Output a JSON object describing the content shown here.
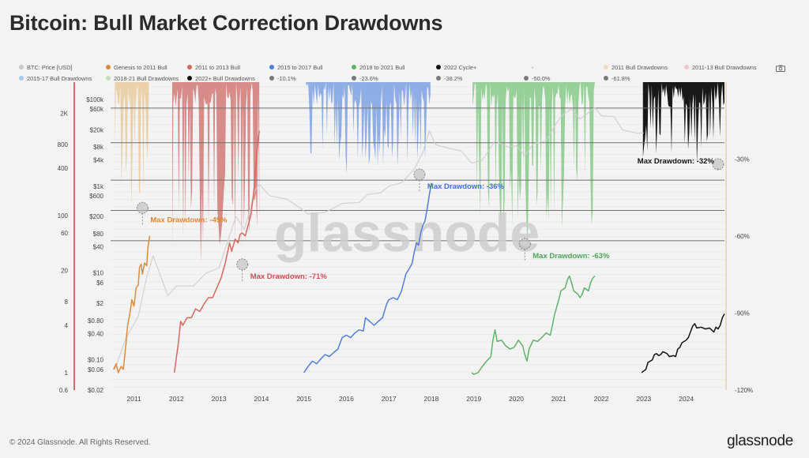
{
  "title": "Bitcoin: Bull Market Correction Drawdowns",
  "legend": [
    {
      "label": "BTC: Price [USD]",
      "color": "#c9c9c9"
    },
    {
      "label": "Genesis to 2011 Bull",
      "color": "#e08a3c"
    },
    {
      "label": "2011 to 2013 Bull",
      "color": "#d9675e"
    },
    {
      "label": "2015 to 2017 Bull",
      "color": "#4f7de0"
    },
    {
      "label": "2018 to 2021 Bull",
      "color": "#5fb368"
    },
    {
      "label": "2022 Cycle+",
      "color": "#111111"
    },
    {
      "label": "-",
      "color": "#f3f3f3"
    },
    {
      "label": "2011 Bull Drawdowns",
      "color": "#f0dcb8"
    },
    {
      "label": "2011-13 Bull Drawdowns",
      "color": "#f2c7cc"
    },
    {
      "label": "2015-17 Bull Drawdowns",
      "color": "#a8c8f0"
    },
    {
      "label": "2018-21 Bull Drawdowns",
      "color": "#bfe3c0"
    },
    {
      "label": "2022+ Bull Drawdowns",
      "color": "#111111"
    },
    {
      "label": "-10.1%",
      "color": "#7a7a7a"
    },
    {
      "label": "-23.6%",
      "color": "#7a7a7a"
    },
    {
      "label": "-38.2%",
      "color": "#7a7a7a"
    },
    {
      "label": "-50.0%",
      "color": "#7a7a7a"
    },
    {
      "label": "-61.8%",
      "color": "#7a7a7a"
    }
  ],
  "footer": {
    "copyright": "© 2024 Glassnode. All Rights Reserved.",
    "brand": "glassnode"
  },
  "chart_data": {
    "type": "line",
    "title": "Bitcoin: Bull Market Correction Drawdowns",
    "watermark": "glassnode",
    "x_ticks": [
      "2011",
      "2012",
      "2013",
      "2014",
      "2015",
      "2016",
      "2017",
      "2018",
      "2019",
      "2020",
      "2021",
      "2022",
      "2023",
      "2024"
    ],
    "x_tick_years": [
      2011,
      2012,
      2013,
      2014,
      2015,
      2016,
      2017,
      2018,
      2019,
      2020,
      2021,
      2022,
      2023,
      2024
    ],
    "x_range": [
      2010.45,
      2024.9
    ],
    "left_axis_outer": {
      "ticks": [
        "2K",
        "800",
        "400",
        "100",
        "60",
        "20",
        "8",
        "4",
        "1",
        "0.6"
      ],
      "values": [
        2000,
        800,
        400,
        100,
        60,
        20,
        8,
        4,
        1,
        0.6
      ],
      "range": [
        0.6,
        5000
      ],
      "scale": "log"
    },
    "left_axis_price": {
      "ticks": [
        "$100k",
        "$60k",
        "$20k",
        "$8k",
        "$4k",
        "$1k",
        "$600",
        "$200",
        "$80",
        "$40",
        "$10",
        "$6",
        "$2",
        "$0.80",
        "$0.40",
        "$0.10",
        "$0.06",
        "$0.02"
      ],
      "values": [
        100000,
        60000,
        20000,
        8000,
        4000,
        1000,
        600,
        200,
        80,
        40,
        10,
        6,
        2,
        0.8,
        0.4,
        0.1,
        0.06,
        0.02
      ],
      "range": [
        0.02,
        250000
      ],
      "scale": "log"
    },
    "right_axis": {
      "ticks": [
        "-30%",
        "-60%",
        "-90%",
        "-120%"
      ],
      "values": [
        -30,
        -60,
        -90,
        -120
      ],
      "range": [
        -120,
        0
      ]
    },
    "reference_lines": [
      -10.1,
      -23.6,
      -38.2,
      -50.0,
      -61.8
    ],
    "series": [
      {
        "name": "BTC: Price [USD]",
        "color": "#cfcfcf",
        "points": [
          [
            2010.55,
            0.06
          ],
          [
            2010.8,
            0.3
          ],
          [
            2011.1,
            1.0
          ],
          [
            2011.3,
            8
          ],
          [
            2011.45,
            25
          ],
          [
            2011.6,
            10
          ],
          [
            2011.8,
            3
          ],
          [
            2012.0,
            5
          ],
          [
            2012.4,
            5
          ],
          [
            2012.7,
            10
          ],
          [
            2013.0,
            13
          ],
          [
            2013.3,
            100
          ],
          [
            2013.4,
            200
          ],
          [
            2013.6,
            100
          ],
          [
            2013.85,
            800
          ],
          [
            2013.95,
            1100
          ],
          [
            2014.2,
            600
          ],
          [
            2014.6,
            500
          ],
          [
            2014.9,
            320
          ],
          [
            2015.1,
            230
          ],
          [
            2015.5,
            250
          ],
          [
            2015.9,
            400
          ],
          [
            2016.3,
            420
          ],
          [
            2016.5,
            650
          ],
          [
            2016.8,
            700
          ],
          [
            2017.0,
            1000
          ],
          [
            2017.3,
            1200
          ],
          [
            2017.6,
            2500
          ],
          [
            2017.8,
            6000
          ],
          [
            2017.95,
            19000
          ],
          [
            2018.1,
            9000
          ],
          [
            2018.4,
            7500
          ],
          [
            2018.7,
            6500
          ],
          [
            2018.95,
            3400
          ],
          [
            2019.2,
            4000
          ],
          [
            2019.5,
            11000
          ],
          [
            2019.8,
            8000
          ],
          [
            2020.0,
            8500
          ],
          [
            2020.2,
            5000
          ],
          [
            2020.4,
            9500
          ],
          [
            2020.7,
            11000
          ],
          [
            2020.95,
            29000
          ],
          [
            2021.1,
            45000
          ],
          [
            2021.3,
            60000
          ],
          [
            2021.5,
            35000
          ],
          [
            2021.85,
            65000
          ],
          [
            2022.0,
            42000
          ],
          [
            2022.3,
            40000
          ],
          [
            2022.5,
            20000
          ],
          [
            2022.85,
            16500
          ],
          [
            2023.0,
            17000
          ]
        ]
      },
      {
        "name": "Genesis to 2011 Bull",
        "color": "#e08a3c",
        "points": [
          [
            2010.52,
            1.1
          ],
          [
            2010.58,
            1.3
          ],
          [
            2010.63,
            1.0
          ],
          [
            2010.7,
            1.2
          ],
          [
            2010.75,
            1.1
          ],
          [
            2010.8,
            2.0
          ],
          [
            2010.85,
            4.0
          ],
          [
            2010.9,
            5.5
          ],
          [
            2010.95,
            8.5
          ],
          [
            2011.0,
            7
          ],
          [
            2011.05,
            12
          ],
          [
            2011.1,
            13
          ],
          [
            2011.13,
            22
          ],
          [
            2011.17,
            24
          ],
          [
            2011.2,
            18
          ],
          [
            2011.25,
            25
          ],
          [
            2011.3,
            23
          ],
          [
            2011.33,
            40
          ],
          [
            2011.37,
            55
          ]
        ]
      },
      {
        "name": "2011 to 2013 Bull",
        "color": "#d9675e",
        "points": [
          [
            2011.95,
            1.0
          ],
          [
            2012.05,
            2.5
          ],
          [
            2012.1,
            4.5
          ],
          [
            2012.15,
            4.0
          ],
          [
            2012.25,
            5.0
          ],
          [
            2012.35,
            5.0
          ],
          [
            2012.45,
            6.5
          ],
          [
            2012.55,
            6.0
          ],
          [
            2012.65,
            7.5
          ],
          [
            2012.75,
            9
          ],
          [
            2012.85,
            9
          ],
          [
            2012.95,
            12
          ],
          [
            2013.05,
            16
          ],
          [
            2013.15,
            25
          ],
          [
            2013.25,
            45
          ],
          [
            2013.3,
            35
          ],
          [
            2013.38,
            50
          ],
          [
            2013.45,
            45
          ],
          [
            2013.5,
            58
          ],
          [
            2013.55,
            60
          ],
          [
            2013.62,
            55
          ],
          [
            2013.7,
            80
          ],
          [
            2013.75,
            100
          ],
          [
            2013.82,
            200
          ],
          [
            2013.88,
            500
          ],
          [
            2013.92,
            900
          ],
          [
            2013.95,
            1200
          ]
        ]
      },
      {
        "name": "2015 to 2017 Bull",
        "color": "#4f7de0",
        "points": [
          [
            2015.0,
            1.0
          ],
          [
            2015.1,
            1.2
          ],
          [
            2015.2,
            1.4
          ],
          [
            2015.3,
            1.3
          ],
          [
            2015.4,
            1.5
          ],
          [
            2015.5,
            1.7
          ],
          [
            2015.6,
            1.6
          ],
          [
            2015.7,
            1.8
          ],
          [
            2015.8,
            2.0
          ],
          [
            2015.9,
            2.8
          ],
          [
            2016.0,
            3.0
          ],
          [
            2016.1,
            2.8
          ],
          [
            2016.2,
            3.2
          ],
          [
            2016.3,
            3.5
          ],
          [
            2016.4,
            3.4
          ],
          [
            2016.45,
            5.0
          ],
          [
            2016.55,
            4.5
          ],
          [
            2016.65,
            4.0
          ],
          [
            2016.75,
            4.5
          ],
          [
            2016.85,
            5.0
          ],
          [
            2016.95,
            7.5
          ],
          [
            2017.0,
            8.5
          ],
          [
            2017.1,
            9
          ],
          [
            2017.2,
            8.5
          ],
          [
            2017.3,
            11
          ],
          [
            2017.4,
            18
          ],
          [
            2017.5,
            22
          ],
          [
            2017.55,
            25
          ],
          [
            2017.6,
            35
          ],
          [
            2017.65,
            45
          ],
          [
            2017.7,
            42
          ],
          [
            2017.75,
            60
          ],
          [
            2017.8,
            75
          ],
          [
            2017.85,
            85
          ],
          [
            2017.9,
            120
          ],
          [
            2017.95,
            180
          ],
          [
            2018.0,
            260
          ]
        ]
      },
      {
        "name": "2018 to 2021 Bull",
        "color": "#5fb368",
        "points": [
          [
            2018.95,
            1.0
          ],
          [
            2019.0,
            0.95
          ],
          [
            2019.1,
            1.0
          ],
          [
            2019.2,
            1.2
          ],
          [
            2019.3,
            1.4
          ],
          [
            2019.4,
            1.6
          ],
          [
            2019.45,
            2.6
          ],
          [
            2019.5,
            3.5
          ],
          [
            2019.55,
            2.5
          ],
          [
            2019.65,
            2.6
          ],
          [
            2019.75,
            2.2
          ],
          [
            2019.85,
            2.0
          ],
          [
            2019.95,
            2.1
          ],
          [
            2020.05,
            2.6
          ],
          [
            2020.15,
            2.2
          ],
          [
            2020.2,
            1.7
          ],
          [
            2020.25,
            1.4
          ],
          [
            2020.3,
            2.0
          ],
          [
            2020.4,
            2.6
          ],
          [
            2020.5,
            2.5
          ],
          [
            2020.6,
            2.8
          ],
          [
            2020.7,
            3.2
          ],
          [
            2020.8,
            3.0
          ],
          [
            2020.85,
            4.0
          ],
          [
            2020.9,
            5.5
          ],
          [
            2020.95,
            6.8
          ],
          [
            2021.0,
            8.5
          ],
          [
            2021.05,
            11
          ],
          [
            2021.15,
            12
          ],
          [
            2021.2,
            15
          ],
          [
            2021.25,
            17
          ],
          [
            2021.3,
            14
          ],
          [
            2021.35,
            11
          ],
          [
            2021.45,
            10
          ],
          [
            2021.5,
            9
          ],
          [
            2021.55,
            10
          ],
          [
            2021.6,
            12
          ],
          [
            2021.7,
            11
          ],
          [
            2021.75,
            14
          ],
          [
            2021.8,
            16
          ],
          [
            2021.85,
            17
          ]
        ]
      },
      {
        "name": "2022 Cycle+",
        "color": "#111111",
        "points": [
          [
            2022.95,
            1.0
          ],
          [
            2023.0,
            1.05
          ],
          [
            2023.05,
            1.1
          ],
          [
            2023.1,
            1.35
          ],
          [
            2023.15,
            1.4
          ],
          [
            2023.2,
            1.45
          ],
          [
            2023.25,
            1.7
          ],
          [
            2023.3,
            1.75
          ],
          [
            2023.35,
            1.65
          ],
          [
            2023.4,
            1.7
          ],
          [
            2023.45,
            1.85
          ],
          [
            2023.5,
            1.8
          ],
          [
            2023.55,
            1.75
          ],
          [
            2023.6,
            1.6
          ],
          [
            2023.7,
            1.65
          ],
          [
            2023.75,
            1.6
          ],
          [
            2023.8,
            2.0
          ],
          [
            2023.85,
            2.1
          ],
          [
            2023.9,
            2.4
          ],
          [
            2023.95,
            2.5
          ],
          [
            2024.0,
            2.6
          ],
          [
            2024.05,
            2.8
          ],
          [
            2024.1,
            3.3
          ],
          [
            2024.15,
            3.9
          ],
          [
            2024.2,
            4.2
          ],
          [
            2024.25,
            3.7
          ],
          [
            2024.35,
            3.8
          ],
          [
            2024.45,
            3.6
          ],
          [
            2024.55,
            3.7
          ],
          [
            2024.65,
            3.3
          ],
          [
            2024.7,
            3.8
          ],
          [
            2024.75,
            3.6
          ],
          [
            2024.8,
            4.0
          ],
          [
            2024.85,
            5.0
          ],
          [
            2024.9,
            5.6
          ]
        ]
      }
    ],
    "drawdown_series": [
      {
        "name": "2011 Bull Drawdowns",
        "color": "#e8c690",
        "x": [
          2010.55,
          2011.35
        ],
        "max": -49
      },
      {
        "name": "2011-13 Bull Drawdowns",
        "color": "#cf6a66",
        "x": [
          2011.9,
          2013.95
        ],
        "max": -71
      },
      {
        "name": "2015-17 Bull Drawdowns",
        "color": "#6f97e2",
        "x": [
          2015.05,
          2017.98
        ],
        "max": -36
      },
      {
        "name": "2018-21 Bull Drawdowns",
        "color": "#78c47a",
        "x": [
          2018.97,
          2021.85
        ],
        "max": -63
      },
      {
        "name": "2022+ Bull Drawdowns",
        "color": "#0d0d0d",
        "x": [
          2022.98,
          2024.9
        ],
        "max": -32
      }
    ],
    "annotations": [
      {
        "text": "Max Drawdown: -49%",
        "color": "#e0882e",
        "x": 2011.2,
        "value": -49
      },
      {
        "text": "Max Drawdown: -71%",
        "color": "#d24a50",
        "x": 2013.55,
        "value": -71
      },
      {
        "text": "Max Drawdown: -36%",
        "color": "#3f6fe0",
        "x": 2017.72,
        "value": -36
      },
      {
        "text": "Max Drawdown: -63%",
        "color": "#4ea458",
        "x": 2020.2,
        "value": -63
      },
      {
        "text": "Max Drawdown: -32%",
        "color": "#111111",
        "x": 2024.75,
        "value": -32
      }
    ]
  }
}
